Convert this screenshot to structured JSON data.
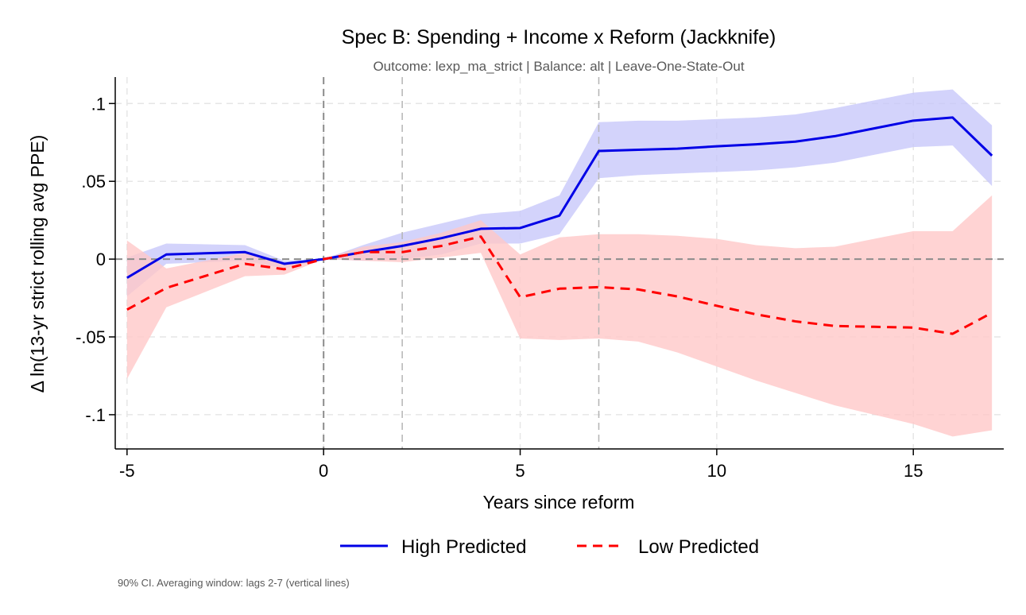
{
  "chart_data": {
    "type": "line",
    "title": "Spec B: Spending + Income x Reform (Jackknife)",
    "subtitle": "Outcome: lexp_ma_strict | Balance: alt | Leave-One-State-Out",
    "xlabel": "Years since reform",
    "ylabel": "Δ ln(13-yr strict rolling avg PPE)",
    "xlim": [
      -5.3,
      17.3
    ],
    "ylim": [
      -0.122,
      0.117
    ],
    "x_ticks": [
      -5,
      0,
      5,
      10,
      15
    ],
    "x_tick_labels": [
      "-5",
      "0",
      "5",
      "10",
      "15"
    ],
    "y_ticks": [
      0.1,
      0.05,
      0,
      -0.05,
      -0.1
    ],
    "y_tick_labels": [
      ".1",
      ".05",
      "0",
      "-.05",
      "-.1"
    ],
    "grid": true,
    "reference_lines": {
      "vertical": [
        0,
        2,
        7
      ],
      "horizontal": [
        0
      ]
    },
    "legend_position": "bottom",
    "note": "90% CI. Averaging window: lags 2-7 (vertical lines)",
    "series": [
      {
        "name": "High Predicted",
        "color": "#0000e6",
        "band_color": "#c8c8fa",
        "style": "solid",
        "x": [
          -5,
          -4,
          -2,
          -1,
          0,
          1,
          2,
          3,
          4,
          5,
          6,
          7,
          8,
          9,
          10,
          11,
          12,
          13,
          14,
          15,
          16,
          17
        ],
        "y": [
          -0.012,
          0.003,
          0.0045,
          -0.003,
          0.0,
          0.0045,
          0.0085,
          0.0135,
          0.0195,
          0.02,
          0.028,
          0.0695,
          0.0703,
          0.071,
          0.0725,
          0.0738,
          0.0755,
          0.079,
          0.084,
          0.089,
          0.091,
          0.0665
        ],
        "lower": [
          -0.024,
          -0.003,
          -0.001,
          -0.006,
          0.0,
          -0.001,
          0.0,
          0.003,
          0.01,
          0.01,
          0.016,
          0.052,
          0.054,
          0.055,
          0.056,
          0.057,
          0.059,
          0.062,
          0.067,
          0.072,
          0.073,
          0.047
        ],
        "upper": [
          0.001,
          0.01,
          0.009,
          -0.001,
          0.0,
          0.009,
          0.017,
          0.023,
          0.029,
          0.031,
          0.041,
          0.088,
          0.089,
          0.089,
          0.09,
          0.091,
          0.093,
          0.097,
          0.102,
          0.107,
          0.109,
          0.086
        ]
      },
      {
        "name": "Low Predicted",
        "color": "#ff0000",
        "band_color": "#ffc8c8",
        "style": "dashed",
        "x": [
          -5,
          -4,
          -2,
          -1,
          0,
          1,
          2,
          3,
          4,
          5,
          6,
          7,
          8,
          9,
          10,
          11,
          12,
          13,
          14,
          15,
          16,
          17
        ],
        "y": [
          -0.0325,
          -0.0185,
          -0.003,
          -0.0065,
          0.0,
          0.0045,
          0.0045,
          0.0085,
          0.0145,
          -0.0245,
          -0.019,
          -0.018,
          -0.0195,
          -0.024,
          -0.03,
          -0.0355,
          -0.04,
          -0.043,
          -0.0435,
          -0.044,
          -0.048,
          -0.0345
        ],
        "lower": [
          -0.077,
          -0.031,
          -0.011,
          -0.01,
          0.0,
          -0.001,
          -0.002,
          0.001,
          0.004,
          -0.051,
          -0.052,
          -0.051,
          -0.053,
          -0.06,
          -0.069,
          -0.078,
          -0.086,
          -0.094,
          -0.1,
          -0.106,
          -0.114,
          -0.11
        ],
        "upper": [
          0.012,
          -0.006,
          0.004,
          -0.003,
          0.0,
          0.008,
          0.011,
          0.017,
          0.025,
          0.003,
          0.014,
          0.016,
          0.016,
          0.015,
          0.013,
          0.009,
          0.007,
          0.008,
          0.013,
          0.018,
          0.018,
          0.041
        ]
      }
    ]
  }
}
